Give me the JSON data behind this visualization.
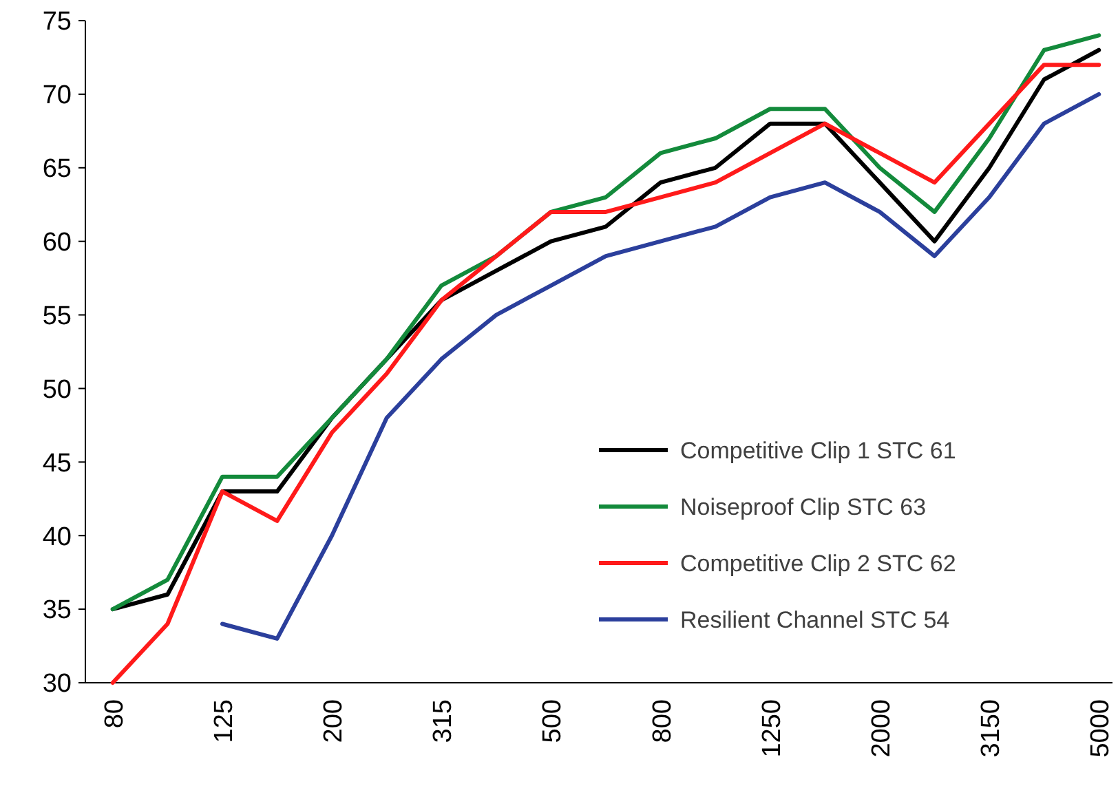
{
  "chart_data": {
    "type": "line",
    "categories": [
      "80",
      null,
      "125",
      null,
      "200",
      null,
      "315",
      null,
      "500",
      null,
      "800",
      null,
      "1250",
      null,
      "2000",
      null,
      "3150",
      null,
      "5000"
    ],
    "series": [
      {
        "name": "Competitive Clip 1 STC 61",
        "color": "#000000",
        "values": [
          35,
          36,
          43,
          43,
          48,
          52,
          56,
          58,
          60,
          61,
          64,
          65,
          68,
          68,
          64,
          60,
          65,
          71,
          73
        ]
      },
      {
        "name": "Noiseproof Clip STC 63",
        "color": "#138a3b",
        "values": [
          35,
          37,
          44,
          44,
          48,
          52,
          57,
          59,
          62,
          63,
          66,
          67,
          69,
          69,
          65,
          62,
          67,
          73,
          74
        ]
      },
      {
        "name": "Competitive Clip 2 STC 62",
        "color": "#ff1a1a",
        "values": [
          30,
          34,
          43,
          41,
          47,
          51,
          56,
          59,
          62,
          62,
          63,
          64,
          66,
          68,
          66,
          64,
          68,
          72,
          72
        ]
      },
      {
        "name": "Resilient Channel STC 54",
        "color": "#2b3f9c",
        "values": [
          null,
          null,
          34,
          33,
          40,
          48,
          52,
          55,
          57,
          59,
          60,
          61,
          63,
          64,
          62,
          59,
          63,
          68,
          70
        ]
      }
    ],
    "ylim": [
      30,
      75
    ],
    "yticks": [
      30,
      35,
      40,
      45,
      50,
      55,
      60,
      65,
      70,
      75
    ],
    "legend": "bottom right",
    "grid": false,
    "marker": "none",
    "line_style": "solid"
  }
}
